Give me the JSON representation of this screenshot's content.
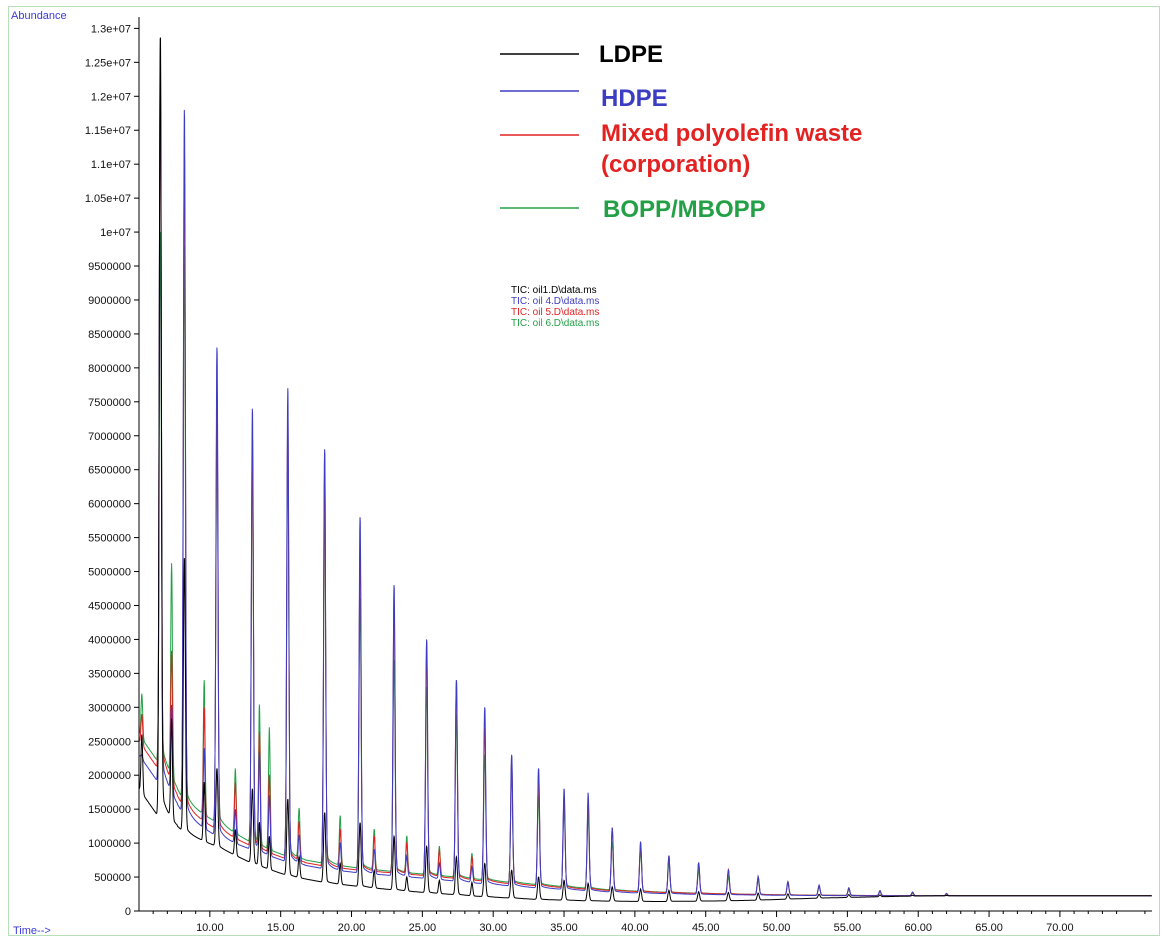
{
  "chart_data": {
    "type": "line",
    "ylabel": "Abundance",
    "xlabel": "Time-->",
    "xlim": [
      5.0,
      76.5
    ],
    "ylim": [
      0,
      13050000
    ],
    "x_ticks": [
      "10.00",
      "15.00",
      "20.00",
      "25.00",
      "30.00",
      "35.00",
      "40.00",
      "45.00",
      "50.00",
      "55.00",
      "60.00",
      "65.00",
      "70.00"
    ],
    "y_ticks": [
      "0",
      "500000",
      "1000000",
      "1500000",
      "2000000",
      "2500000",
      "3000000",
      "3500000",
      "4000000",
      "4500000",
      "5000000",
      "5500000",
      "6000000",
      "6500000",
      "7000000",
      "7500000",
      "8000000",
      "8500000",
      "9000000",
      "9500000",
      "1e+07",
      "1.05e+07",
      "1.1e+07",
      "1.15e+07",
      "1.2e+07",
      "1.25e+07",
      "1.3e+07"
    ],
    "grid": false,
    "legend_position": "top-center",
    "legend": [
      {
        "label": "LDPE",
        "color": "#000000"
      },
      {
        "label": "HDPE",
        "color": "#3d3dc4"
      },
      {
        "label": "Mixed polyolefin waste",
        "label2": "(corporation)",
        "color": "#e32222"
      },
      {
        "label": "BOPP/MBOPP",
        "color": "#23a046"
      }
    ],
    "tic_labels": [
      {
        "text": "TIC: oil1.D\\data.ms",
        "color": "#000000"
      },
      {
        "text": "TIC: oil 4.D\\data.ms",
        "color": "#3d3dc4"
      },
      {
        "text": "TIC: oil 5.D\\data.ms",
        "color": "#e32222"
      },
      {
        "text": "TIC: oil 6.D\\data.ms",
        "color": "#23a046"
      }
    ],
    "peak_times": [
      6.5,
      8.2,
      10.5,
      13.0,
      15.5,
      18.1,
      20.6,
      23.0,
      25.3,
      27.4,
      29.4,
      31.3,
      33.2,
      35.0,
      36.7,
      38.4,
      40.4,
      42.4,
      44.5,
      46.6,
      48.7,
      50.8,
      53.0,
      55.1,
      57.3,
      59.6,
      62.0
    ],
    "series": [
      {
        "name": "LDPE",
        "color": "#000000",
        "base": [
          1500000,
          1150000,
          950000,
          700000,
          520000,
          420000,
          360000,
          310000,
          270000,
          240000,
          210000,
          190000,
          170000,
          160000,
          150000,
          145000,
          140000,
          140000,
          145000,
          150000,
          160000,
          175000,
          190000,
          200000,
          210000,
          220000,
          225000
        ],
        "peaks": [
          13000000,
          5200000,
          2100000,
          1800000,
          1650000,
          1450000,
          1300000,
          1100000,
          950000,
          800000,
          700000,
          600000,
          500000,
          450000,
          400000,
          350000,
          320000,
          300000,
          280000,
          270000,
          260000,
          250000,
          245000,
          240000,
          235000,
          230000,
          228000
        ]
      },
      {
        "name": "HDPE",
        "color": "#3d3dc4",
        "base": [
          2000000,
          1400000,
          1100000,
          900000,
          720000,
          620000,
          560000,
          520000,
          480000,
          440000,
          400000,
          370000,
          340000,
          320000,
          300000,
          280000,
          265000,
          255000,
          245000,
          240000,
          235000,
          230000,
          228000,
          226000,
          225000,
          224000,
          223000
        ],
        "peaks": [
          13000000,
          11800000,
          8300000,
          7400000,
          7700000,
          6800000,
          5800000,
          4800000,
          4000000,
          3400000,
          3000000,
          2300000,
          2100000,
          1800000,
          1700000,
          1200000,
          1000000,
          800000,
          700000,
          600000,
          500000,
          430000,
          380000,
          340000,
          300000,
          280000,
          260000
        ]
      },
      {
        "name": "Mixed polyolefin waste (corporation)",
        "color": "#e32222",
        "base": [
          2200000,
          1500000,
          1200000,
          950000,
          760000,
          660000,
          600000,
          560000,
          520000,
          480000,
          440000,
          400000,
          370000,
          345000,
          320000,
          300000,
          285000,
          270000,
          260000,
          250000,
          243000,
          236000,
          232000,
          229000,
          227000,
          226000,
          225000
        ],
        "peaks": [
          12600000,
          11200000,
          7700000,
          7000000,
          7300000,
          6500000,
          5400000,
          4600000,
          3800000,
          3400000,
          2700000,
          2200000,
          2000000,
          1700000,
          1600000,
          1200000,
          1000000,
          800000,
          700000,
          600000,
          500000,
          420000,
          370000,
          330000,
          290000,
          270000,
          250000
        ]
      },
      {
        "name": "BOPP/MBOPP",
        "color": "#23a046",
        "base": [
          2300000,
          1600000,
          1300000,
          1000000,
          800000,
          700000,
          630000,
          580000,
          540000,
          500000,
          460000,
          420000,
          390000,
          360000,
          335000,
          310000,
          290000,
          275000,
          262000,
          252000,
          244000,
          237000,
          233000,
          230000,
          228000,
          226000,
          225000
        ],
        "peaks": [
          10100000,
          9800000,
          7300000,
          6700000,
          6700000,
          6000000,
          4600000,
          3700000,
          3300000,
          2900000,
          2300000,
          2000000,
          1700000,
          1500000,
          1400000,
          1000000,
          900000,
          700000,
          600000,
          500000,
          450000,
          400000,
          350000,
          310000,
          280000,
          260000,
          245000
        ]
      }
    ],
    "extra_peaks": [
      {
        "t": 5.2,
        "values": [
          2600000,
          2300000,
          2900000,
          3200000
        ]
      },
      {
        "t": 7.3,
        "values": [
          2800000,
          3000000,
          3800000,
          5100000
        ]
      },
      {
        "t": 9.6,
        "values": [
          1900000,
          2400000,
          3000000,
          3400000
        ]
      },
      {
        "t": 11.8,
        "values": [
          1200000,
          1500000,
          1900000,
          2100000
        ]
      },
      {
        "t": 13.5,
        "values": [
          1300000,
          2300000,
          2600000,
          3000000
        ]
      },
      {
        "t": 14.2,
        "values": [
          1100000,
          1700000,
          2000000,
          2700000
        ]
      },
      {
        "t": 16.3,
        "values": [
          800000,
          1100000,
          1300000,
          1500000
        ]
      },
      {
        "t": 19.2,
        "values": [
          700000,
          1000000,
          1200000,
          1400000
        ]
      },
      {
        "t": 21.6,
        "values": [
          600000,
          900000,
          1100000,
          1200000
        ]
      },
      {
        "t": 23.9,
        "values": [
          500000,
          800000,
          1000000,
          1100000
        ]
      },
      {
        "t": 26.2,
        "values": [
          450000,
          700000,
          900000,
          950000
        ]
      },
      {
        "t": 28.5,
        "values": [
          420000,
          650000,
          800000,
          850000
        ]
      }
    ]
  }
}
